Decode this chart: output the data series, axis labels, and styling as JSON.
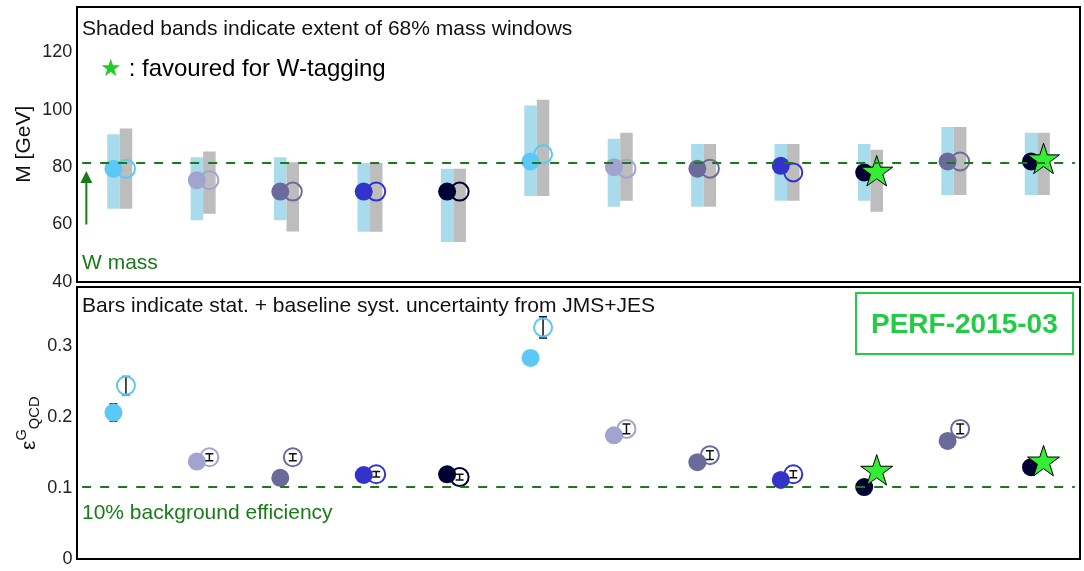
{
  "chart_data": [
    {
      "type": "scatter",
      "ylabel": "M [GeV]",
      "categories": [
        null,
        null,
        null,
        null,
        null,
        null,
        null,
        null,
        null,
        null,
        null,
        null
      ],
      "ylim": [
        40,
        135
      ],
      "yticks": [
        40,
        60,
        80,
        100,
        120
      ],
      "tick_labels": "y",
      "annotations": [
        "Shaded bands indicate extent of 68% mass windows",
        "★ : favoured for W-tagging"
      ],
      "ref_lines": [
        {
          "axis": "y",
          "value": 81,
          "label": "W mass",
          "color": "#1a7a1a",
          "line_style": "dashed"
        }
      ],
      "series": [
        {
          "type": "bar",
          "base": [
            65,
            61,
            61,
            57,
            53.4,
            69.5,
            65.7,
            65.7,
            67.8,
            67.8,
            69.8,
            69.8
          ],
          "values": [
            26,
            22,
            22,
            24,
            25.6,
            31.5,
            23.7,
            21.9,
            19.8,
            19.8,
            23.7,
            21.7
          ],
          "color": "#a8dcec"
        },
        {
          "type": "bar",
          "base": [
            65,
            63.3,
            57.1,
            57,
            53.4,
            69.5,
            67.8,
            65.7,
            67.8,
            64,
            69.8,
            69.8
          ],
          "values": [
            28,
            21.7,
            24.1,
            24,
            25.6,
            33.5,
            23.7,
            21.9,
            19.8,
            21.6,
            23.7,
            21.7
          ],
          "color": "#bdbdbd"
        },
        {
          "type": "scatter",
          "marker": "circle",
          "colors": [
            "#5bc8f5",
            "#a3a3cf",
            "#6b6b9b",
            "#3333cc",
            "#000033",
            "#5bc8f5",
            "#a3a3cf",
            "#6b6b9b",
            "#3333cc",
            "#000033",
            "#6b6b9b",
            "#000033"
          ],
          "values": [
            79,
            75,
            71,
            71,
            71,
            81.5,
            79.5,
            79,
            80,
            77.7,
            81.5,
            81.5
          ]
        },
        {
          "type": "scatter",
          "marker": "circle-open",
          "colors": [
            "#5bc8f5",
            "#a3a3cf",
            "#6b6b9b",
            "#3333cc",
            "#000033",
            "#5bc8f5",
            "#a3a3cf",
            "#6b6b9b",
            "#3333cc",
            null,
            "#6b6b9b",
            null
          ],
          "values": [
            79,
            75,
            71,
            71,
            71,
            84,
            79,
            79,
            77.7,
            null,
            81.5,
            null
          ]
        },
        {
          "type": "scatter",
          "marker": "star",
          "color": "#33ee33",
          "values": [
            null,
            null,
            null,
            null,
            null,
            null,
            null,
            null,
            null,
            77.7,
            null,
            82
          ]
        }
      ]
    },
    {
      "type": "scatter",
      "ylabel": "ε$^{G}$$_{QCD}$",
      "categories": [
        null,
        null,
        null,
        null,
        null,
        null,
        null,
        null,
        null,
        null,
        null,
        null
      ],
      "ylim": [
        0,
        0.38
      ],
      "yticks": [
        0,
        0.1,
        0.2,
        0.3
      ],
      "tick_labels": "y",
      "annotations": [
        "Bars indicate stat. + baseline syst. uncertainty from JMS+JES",
        "PERF-2015-03"
      ],
      "ref_lines": [
        {
          "axis": "y",
          "value": 0.1,
          "label": "10% background efficiency",
          "color": "#1a7a1a",
          "line_style": "dashed"
        }
      ],
      "series": [
        {
          "type": "scatter",
          "marker": "circle",
          "colors": [
            "#5bc8f5",
            "#a3a3cf",
            "#6b6b9b",
            "#3333cc",
            "#000033",
            "#5bc8f5",
            "#a3a3cf",
            "#6b6b9b",
            "#3333cc",
            "#000033",
            "#6b6b9b",
            "#000033"
          ],
          "values": [
            0.205,
            0.136,
            0.113,
            0.117,
            0.118,
            0.282,
            0.173,
            0.135,
            0.11,
            0.1,
            0.165,
            0.128
          ],
          "errors": [
            0.012,
            null,
            null,
            null,
            null,
            null,
            null,
            null,
            null,
            null,
            null,
            null
          ]
        },
        {
          "type": "scatter",
          "marker": "circle-open",
          "colors": [
            "#5bc8f5",
            "#a3a3cf",
            "#6b6b9b",
            "#3333cc",
            "#000033",
            "#5bc8f5",
            "#a3a3cf",
            "#6b6b9b",
            "#3333cc",
            null,
            "#6b6b9b",
            null
          ],
          "values": [
            0.243,
            0.142,
            0.142,
            0.118,
            0.114,
            0.325,
            0.182,
            0.145,
            0.118,
            null,
            0.182,
            null
          ],
          "errors": [
            0.013,
            0.005,
            0.005,
            0.004,
            0.004,
            0.015,
            0.007,
            0.006,
            0.005,
            null,
            0.007,
            null
          ]
        },
        {
          "type": "scatter",
          "marker": "star",
          "color": "#33ee33",
          "values": [
            null,
            null,
            null,
            null,
            null,
            null,
            null,
            null,
            null,
            0.122,
            null,
            0.135
          ]
        }
      ]
    }
  ]
}
